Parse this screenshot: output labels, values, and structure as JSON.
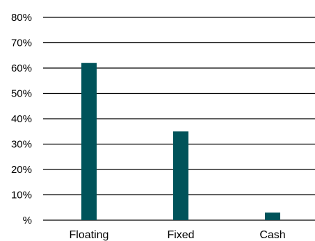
{
  "chart_data": {
    "type": "bar",
    "categories": [
      "Floating",
      "Fixed",
      "Cash"
    ],
    "values": [
      62,
      35,
      3
    ],
    "title": "",
    "xlabel": "",
    "ylabel": "",
    "ylim": [
      0,
      80
    ],
    "yticks": [
      0,
      10,
      20,
      30,
      40,
      50,
      60,
      70,
      80
    ],
    "ytick_labels": [
      "%",
      "10%",
      "20%",
      "30%",
      "40%",
      "50%",
      "60%",
      "70%",
      "80%"
    ],
    "grid": true,
    "legend": "none",
    "bar_color": "#00535a"
  }
}
